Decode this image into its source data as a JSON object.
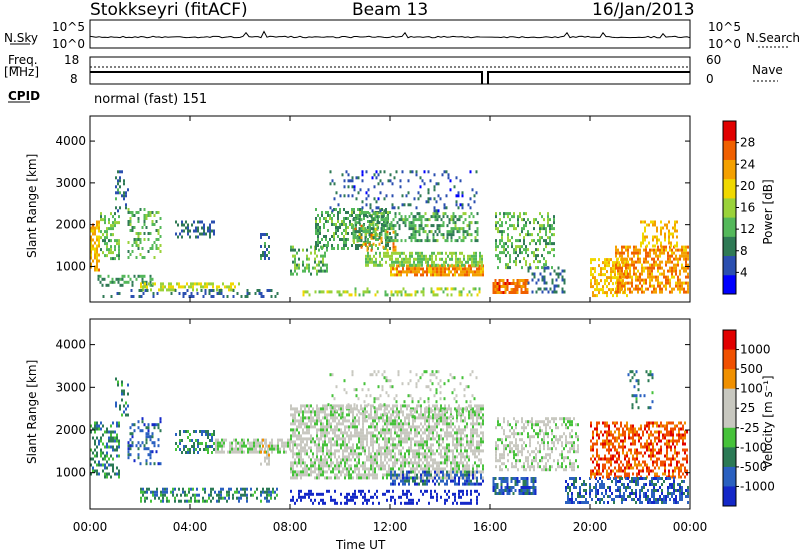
{
  "header": {
    "title": "Stokkseyri (fitACF)",
    "beam": "Beam 13",
    "date": "16/Jan/2013"
  },
  "top_panels": {
    "nsky_label": "N.Sky",
    "nsearch_label": "N.Search",
    "nsky_ticks": [
      "10^5",
      "10^0"
    ],
    "freq_label": "Freq.",
    "freq_unit": "[MHz]",
    "freq_ticks": [
      "18",
      "8"
    ],
    "nave_label": "Nave",
    "nave_ticks": [
      "60",
      "0"
    ],
    "cpid_label": "CPID",
    "cpid_value": "normal (fast) 151"
  },
  "colors": {
    "power_scale": [
      "#0000ff",
      "#2b4fb0",
      "#2f7a55",
      "#54b85a",
      "#9ad23a",
      "#f0d800",
      "#f4a000",
      "#f06000",
      "#e10000"
    ],
    "velocity_scale": [
      "#1428c8",
      "#2a60c0",
      "#2b7a55",
      "#46c23a",
      "#c8c8c0",
      "#c8c8c0",
      "#f09000",
      "#f05000",
      "#e10000"
    ],
    "ground_scatter": "#c8c8c0"
  },
  "chart_data": [
    {
      "type": "heatmap",
      "panel": "power",
      "x_tick_labels": [
        "00:00",
        "04:00",
        "08:00",
        "12:00",
        "16:00",
        "20:00",
        "00:00"
      ],
      "xlabel": "Time UT",
      "xlim": [
        0,
        24
      ],
      "ylabel": "Slant Range [km]",
      "ylim": [
        150,
        4600
      ],
      "y_ticks": [
        1000,
        2000,
        3000,
        4000
      ],
      "colorbar": {
        "label": "Power [dB]",
        "ticks": [
          4,
          8,
          12,
          16,
          20,
          24,
          28
        ],
        "range": [
          0,
          32
        ]
      },
      "blobs": [
        {
          "t0": 0.0,
          "t1": 0.4,
          "r0": 900,
          "r1": 2100,
          "v": 25,
          "d": 0.65
        },
        {
          "t0": 0.4,
          "t1": 1.2,
          "r0": 1200,
          "r1": 2300,
          "v": 15,
          "d": 0.45
        },
        {
          "t0": 1.0,
          "t1": 1.5,
          "r0": 2300,
          "r1": 3300,
          "v": 9,
          "d": 0.3
        },
        {
          "t0": 1.5,
          "t1": 2.8,
          "r0": 1200,
          "r1": 2400,
          "v": 14,
          "d": 0.35
        },
        {
          "t0": 0.3,
          "t1": 2.5,
          "r0": 550,
          "r1": 800,
          "v": 12,
          "d": 0.35
        },
        {
          "t0": 2.0,
          "t1": 6.0,
          "r0": 450,
          "r1": 620,
          "v": 20,
          "d": 0.55
        },
        {
          "t0": 3.4,
          "t1": 5.0,
          "r0": 1700,
          "r1": 2100,
          "v": 8,
          "d": 0.45
        },
        {
          "t0": 0.5,
          "t1": 7.5,
          "r0": 300,
          "r1": 460,
          "v": 8,
          "d": 0.25
        },
        {
          "t0": 6.8,
          "t1": 7.2,
          "r0": 1200,
          "r1": 1800,
          "v": 9,
          "d": 0.5
        },
        {
          "t0": 8.0,
          "t1": 9.5,
          "r0": 800,
          "r1": 1500,
          "v": 14,
          "d": 0.45
        },
        {
          "t0": 9.0,
          "t1": 12.0,
          "r0": 1400,
          "r1": 2400,
          "v": 13,
          "d": 0.45
        },
        {
          "t0": 10.5,
          "t1": 12.2,
          "r0": 1400,
          "r1": 2000,
          "v": 26,
          "d": 0.3
        },
        {
          "t0": 12.0,
          "t1": 15.7,
          "r0": 800,
          "r1": 1050,
          "v": 27,
          "d": 0.8
        },
        {
          "t0": 11.0,
          "t1": 15.7,
          "r0": 1050,
          "r1": 1350,
          "v": 16,
          "d": 0.6
        },
        {
          "t0": 10.5,
          "t1": 15.5,
          "r0": 1600,
          "r1": 2300,
          "v": 13,
          "d": 0.5
        },
        {
          "t0": 9.5,
          "t1": 15.5,
          "r0": 2300,
          "r1": 3300,
          "v": 7,
          "d": 0.15
        },
        {
          "t0": 8.5,
          "t1": 15.6,
          "r0": 300,
          "r1": 500,
          "v": 18,
          "d": 0.3
        },
        {
          "t0": 16.1,
          "t1": 17.5,
          "r0": 400,
          "r1": 700,
          "v": 29,
          "d": 0.8
        },
        {
          "t0": 16.2,
          "t1": 18.6,
          "r0": 1000,
          "r1": 2300,
          "v": 14,
          "d": 0.4
        },
        {
          "t0": 17.5,
          "t1": 19.0,
          "r0": 400,
          "r1": 1000,
          "v": 8,
          "d": 0.35
        },
        {
          "t0": 20.0,
          "t1": 21.5,
          "r0": 300,
          "r1": 1200,
          "v": 24,
          "d": 0.5
        },
        {
          "t0": 21.0,
          "t1": 23.9,
          "r0": 400,
          "r1": 1500,
          "v": 27,
          "d": 0.6
        },
        {
          "t0": 22.0,
          "t1": 23.5,
          "r0": 1500,
          "r1": 2100,
          "v": 24,
          "d": 0.4
        }
      ]
    },
    {
      "type": "heatmap",
      "panel": "velocity",
      "x_tick_labels": [
        "00:00",
        "04:00",
        "08:00",
        "12:00",
        "16:00",
        "20:00",
        "00:00"
      ],
      "xlabel": "Time UT",
      "xlim": [
        0,
        24
      ],
      "ylabel": "Slant Range [km]",
      "ylim": [
        150,
        4600
      ],
      "y_ticks": [
        1000,
        2000,
        3000,
        4000
      ],
      "colorbar": {
        "label": "Velocity [m s⁻¹]",
        "ticks": [
          1000,
          500,
          100,
          25,
          -25,
          -100,
          -500,
          -1000
        ]
      },
      "blobs": [
        {
          "t0": 0.0,
          "t1": 1.2,
          "r0": 900,
          "r1": 2200,
          "v": 2,
          "d": 0.45
        },
        {
          "t0": 1.0,
          "t1": 1.5,
          "r0": 2300,
          "r1": 3300,
          "v": 2,
          "d": 0.2
        },
        {
          "t0": 1.5,
          "t1": 2.8,
          "r0": 1200,
          "r1": 2300,
          "v": 1,
          "d": 0.3
        },
        {
          "t0": 2.0,
          "t1": 7.5,
          "r0": 350,
          "r1": 650,
          "v": 2,
          "d": 0.45
        },
        {
          "t0": 3.4,
          "t1": 5.0,
          "r0": 1500,
          "r1": 2000,
          "v": 2,
          "d": 0.4
        },
        {
          "t0": 5.0,
          "t1": 8.0,
          "r0": 1500,
          "r1": 1800,
          "v": 4,
          "d": 0.7
        },
        {
          "t0": 6.8,
          "t1": 7.2,
          "r0": 1200,
          "r1": 1800,
          "v": 5,
          "d": 0.5
        },
        {
          "t0": 8.0,
          "t1": 15.7,
          "r0": 850,
          "r1": 2600,
          "v": 4,
          "d": 0.65
        },
        {
          "t0": 9.5,
          "t1": 15.5,
          "r0": 2300,
          "r1": 3400,
          "v": 4,
          "d": 0.15
        },
        {
          "t0": 12.0,
          "t1": 15.7,
          "r0": 700,
          "r1": 1050,
          "v": 1,
          "d": 0.55
        },
        {
          "t0": 8.0,
          "t1": 15.6,
          "r0": 300,
          "r1": 600,
          "v": -1,
          "d": 0.3
        },
        {
          "t0": 16.1,
          "t1": 17.8,
          "r0": 500,
          "r1": 900,
          "v": 1,
          "d": 0.65
        },
        {
          "t0": 16.2,
          "t1": 19.5,
          "r0": 1100,
          "r1": 2300,
          "v": 4,
          "d": 0.45
        },
        {
          "t0": 19.0,
          "t1": 21.0,
          "r0": 300,
          "r1": 900,
          "v": 1,
          "d": 0.45
        },
        {
          "t0": 20.0,
          "t1": 23.9,
          "r0": 900,
          "r1": 2200,
          "v": 7,
          "d": 0.5
        },
        {
          "t0": 21.0,
          "t1": 23.9,
          "r0": 300,
          "r1": 900,
          "v": 1,
          "d": 0.55
        },
        {
          "t0": 21.5,
          "t1": 22.5,
          "r0": 2500,
          "r1": 3400,
          "v": 2,
          "d": 0.2
        }
      ]
    }
  ]
}
